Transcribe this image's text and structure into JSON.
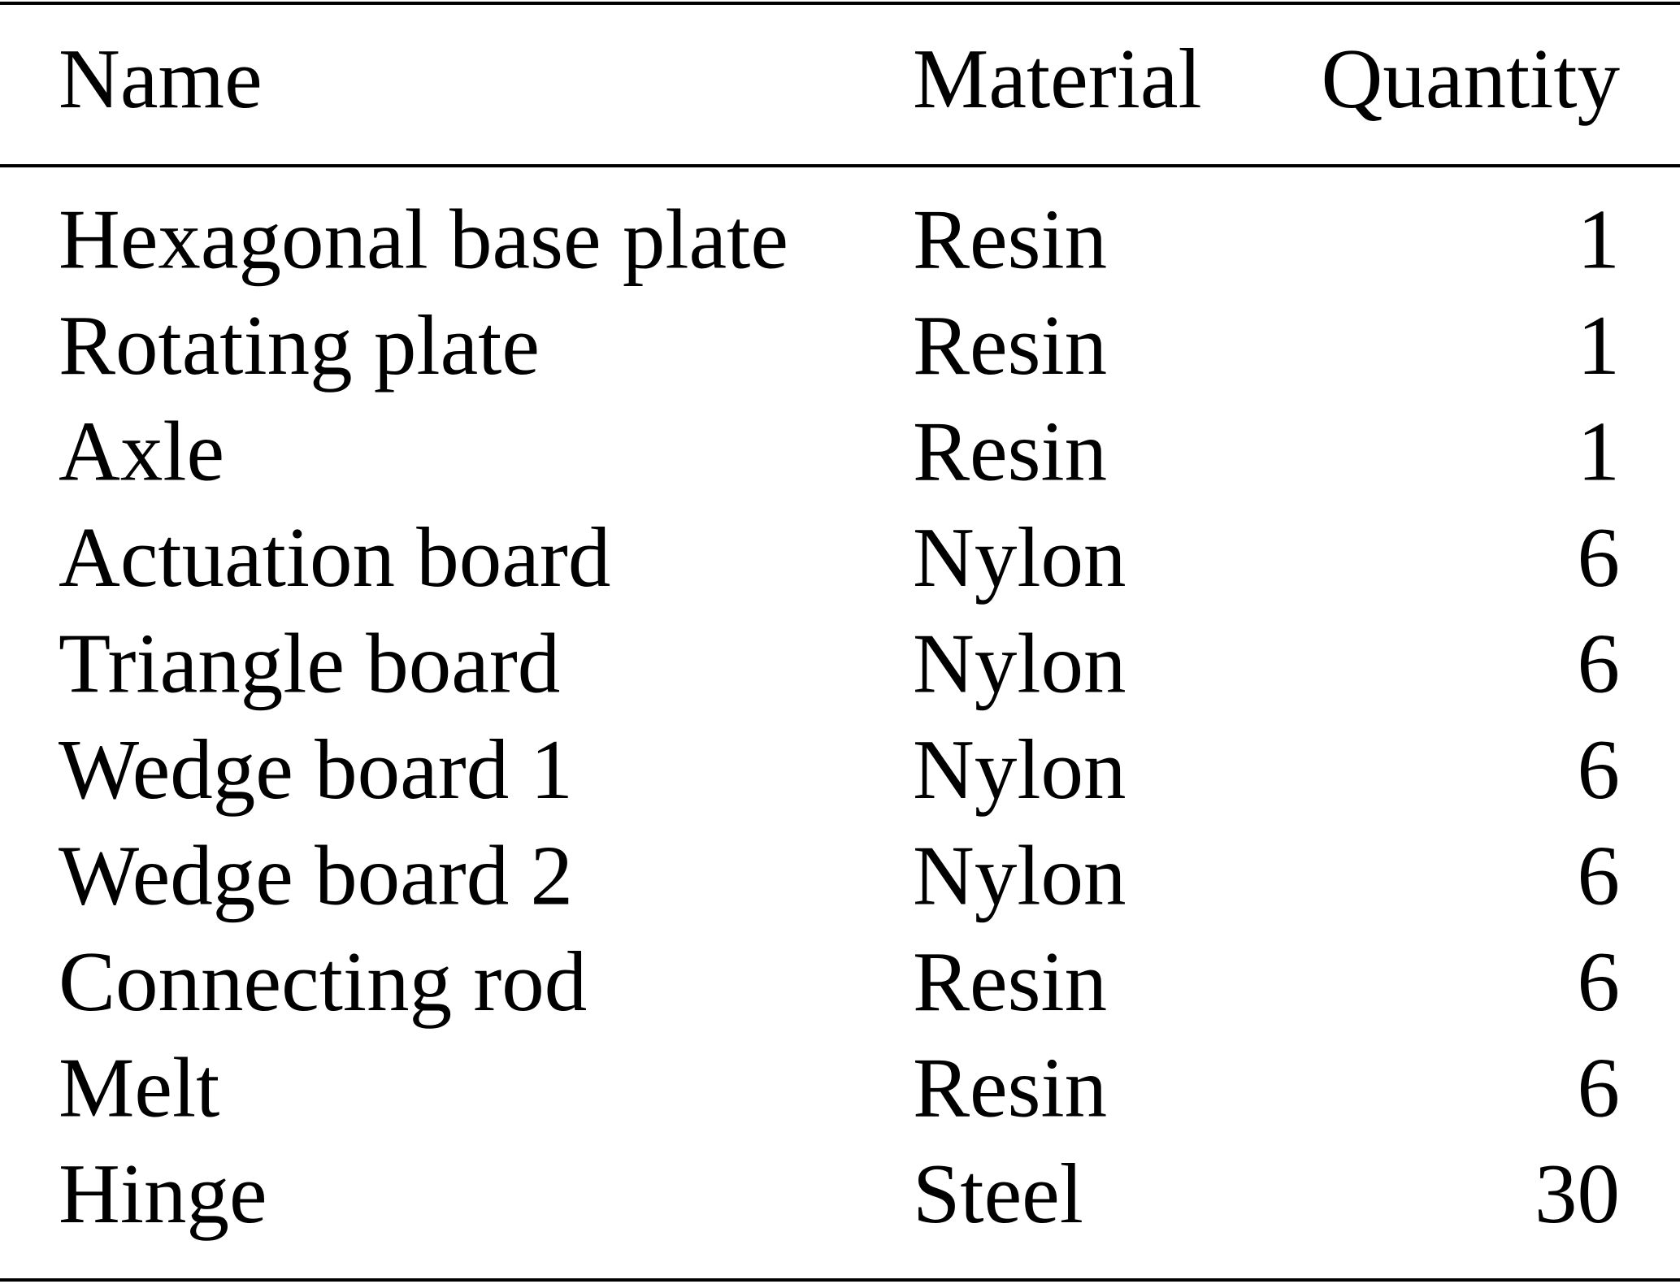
{
  "table": {
    "headers": [
      "Name",
      "Material",
      "Quantity"
    ],
    "rows": [
      [
        "Hexagonal base plate",
        "Resin",
        1
      ],
      [
        "Rotating plate",
        "Resin",
        1
      ],
      [
        "Axle",
        "Resin",
        1
      ],
      [
        "Actuation board",
        "Nylon",
        6
      ],
      [
        "Triangle board",
        "Nylon",
        6
      ],
      [
        "Wedge board 1",
        "Nylon",
        6
      ],
      [
        "Wedge board 2",
        "Nylon",
        6
      ],
      [
        "Connecting rod",
        "Resin",
        6
      ],
      [
        "Melt",
        "Resin",
        6
      ],
      [
        "Hinge",
        "Steel",
        30
      ]
    ]
  }
}
